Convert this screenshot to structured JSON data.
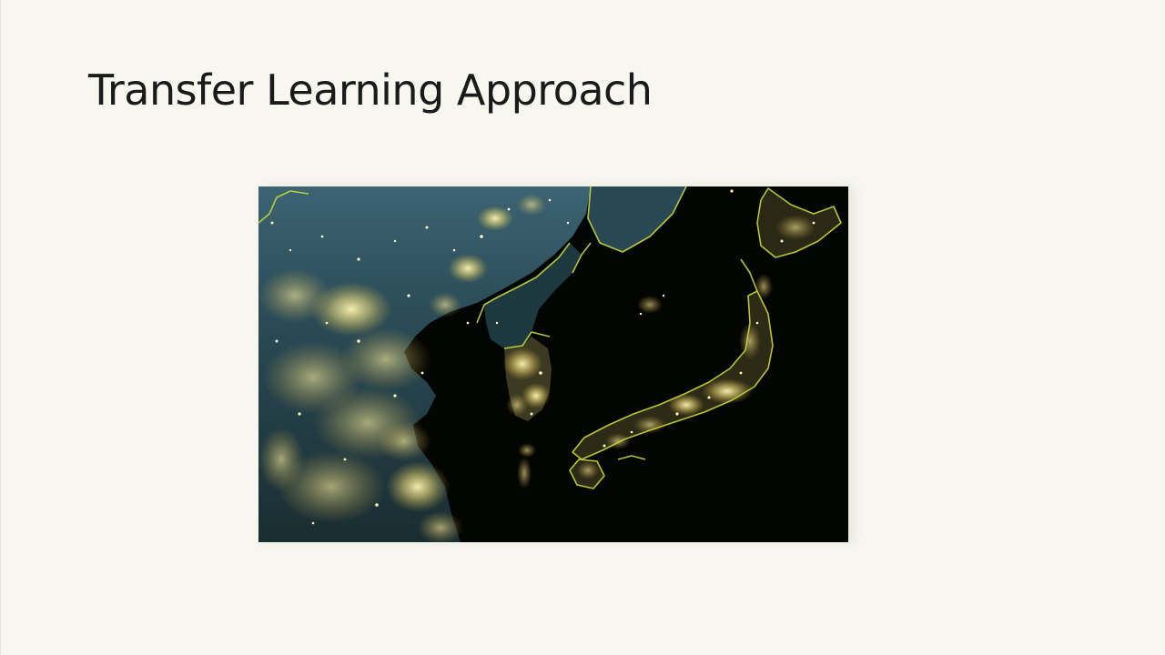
{
  "slide": {
    "title": "Transfer Learning Approach"
  },
  "figure": {
    "kind": "night-satellite-image",
    "subject": "East Asia night lights with border outlines",
    "colors": {
      "land_dark": "#2c4a55",
      "sea": "#020401",
      "lights": "#fff3a8",
      "borders": "#c8d83c"
    }
  }
}
